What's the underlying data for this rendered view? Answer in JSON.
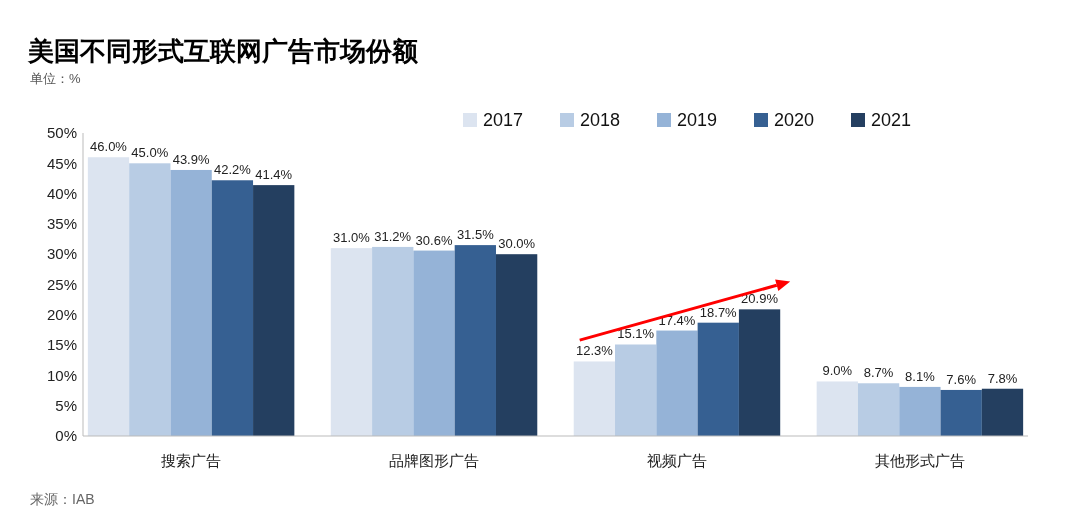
{
  "chart_data": {
    "type": "bar",
    "title": "美国不同形式互联网广告市场份额",
    "subtitle": "单位：%",
    "categories": [
      "搜索广告",
      "品牌图形广告",
      "视频广告",
      "其他形式广告"
    ],
    "series": [
      {
        "name": "2017",
        "color": "#dce4f0",
        "values": [
          46.0,
          31.0,
          12.3,
          9.0
        ]
      },
      {
        "name": "2018",
        "color": "#b8cce4",
        "values": [
          45.0,
          31.2,
          15.1,
          8.7
        ]
      },
      {
        "name": "2019",
        "color": "#95b3d7",
        "values": [
          43.9,
          30.6,
          17.4,
          8.1
        ]
      },
      {
        "name": "2020",
        "color": "#366092",
        "values": [
          42.2,
          31.5,
          18.7,
          7.6
        ]
      },
      {
        "name": "2021",
        "color": "#243f60",
        "values": [
          41.4,
          30.0,
          20.9,
          7.8
        ]
      }
    ],
    "ylim": [
      0,
      50
    ],
    "yticks": [
      {
        "value": 0,
        "label": "0%"
      },
      {
        "value": 5,
        "label": "5%"
      },
      {
        "value": 10,
        "label": "10%"
      },
      {
        "value": 15,
        "label": "15%"
      },
      {
        "value": 20,
        "label": "20%"
      },
      {
        "value": 25,
        "label": "25%"
      },
      {
        "value": 30,
        "label": "30%"
      },
      {
        "value": 35,
        "label": "35%"
      },
      {
        "value": 40,
        "label": "40%"
      },
      {
        "value": 45,
        "label": "45%"
      },
      {
        "value": 50,
        "label": "50%"
      }
    ],
    "value_labels": [
      [
        "46.0%",
        "31.0%",
        "12.3%",
        "9.0%"
      ],
      [
        "45.0%",
        "31.2%",
        "15.1%",
        "8.7%"
      ],
      [
        "43.9%",
        "30.6%",
        "17.4%",
        "8.1%"
      ],
      [
        "42.2%",
        "31.5%",
        "18.7%",
        "7.6%"
      ],
      [
        "41.4%",
        "30.0%",
        "20.9%",
        "7.8%"
      ]
    ],
    "legend": "top right",
    "grid": false,
    "annotations": [
      "来源：IAB"
    ]
  }
}
